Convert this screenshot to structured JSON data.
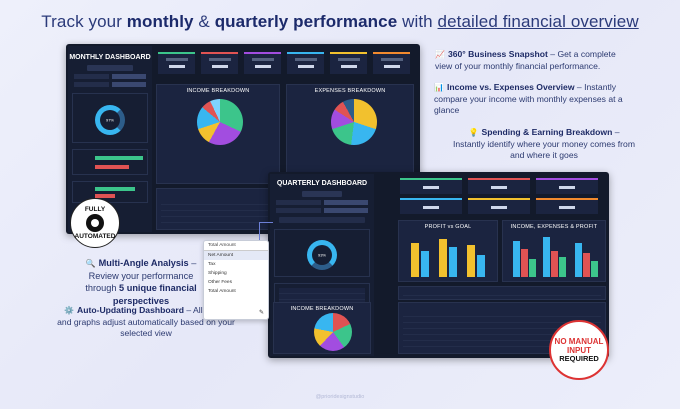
{
  "headline": {
    "part1": "Track your ",
    "bold1": "monthly",
    "amp": " & ",
    "bold2": "quarterly performance",
    "part2": " with ",
    "underline": "detailed financial overview"
  },
  "monthly_dashboard": {
    "title": "MONTHLY DASHBOARD",
    "donut_value": "97%",
    "panel_income": "INCOME BREAKDOWN",
    "panel_expenses": "EXPENSES BREAKDOWN",
    "pie_income_colors": [
      "#3cc58b",
      "#a24de0",
      "#f2c12e",
      "#38b6f0",
      "#e05353",
      "#7fd2ff"
    ],
    "pie_expense_colors": [
      "#f2c12e",
      "#38b6f0",
      "#3cc58b",
      "#a24de0",
      "#e05353",
      "#2d5d8a"
    ]
  },
  "quarterly_dashboard": {
    "title": "QUARTERLY DASHBOARD",
    "donut_value": "93%",
    "panel_profit": "PROFIT vs GOAL",
    "panel_income_exp": "INCOME, EXPENSES & PROFIT",
    "panel_income": "INCOME BREAKDOWN",
    "bar_colors": [
      "#f2c12e",
      "#38b6f0",
      "#e05353",
      "#3cc58b"
    ]
  },
  "features": [
    {
      "emoji": "📈",
      "title": "360° Business Snapshot",
      "text": " – Get a complete view of your monthly financial performance."
    },
    {
      "emoji": "📊",
      "title": "Income vs. Expenses Overview",
      "text": " – Instantly compare your income with monthly expenses at a glance"
    },
    {
      "emoji": "💡",
      "title": "Spending & Earning Breakdown",
      "text": " – Instantly identify where your money comes from and where it goes"
    },
    {
      "emoji": "🔍",
      "title": "Multi-Angle Analysis",
      "text_pre": " – Review your performance through ",
      "bold": "5 unique financial perspectives"
    },
    {
      "emoji": "⚙️",
      "title": "Auto-Updating Dashboard",
      "text": " – All tables and graphs adjust automatically based on your selected view"
    }
  ],
  "badge_auto": {
    "line1": "FULLY",
    "line2": "AUTOMATED"
  },
  "badge_manual": {
    "line1": "NO MANUAL",
    "line2": "INPUT",
    "line3": "REQUIRED"
  },
  "dropdown": {
    "header": "Total Amount",
    "options": [
      "Net Amount",
      "Tax",
      "Shipping",
      "Other Fees",
      "Total Amount"
    ]
  },
  "credit": "@prioridesignstudio"
}
